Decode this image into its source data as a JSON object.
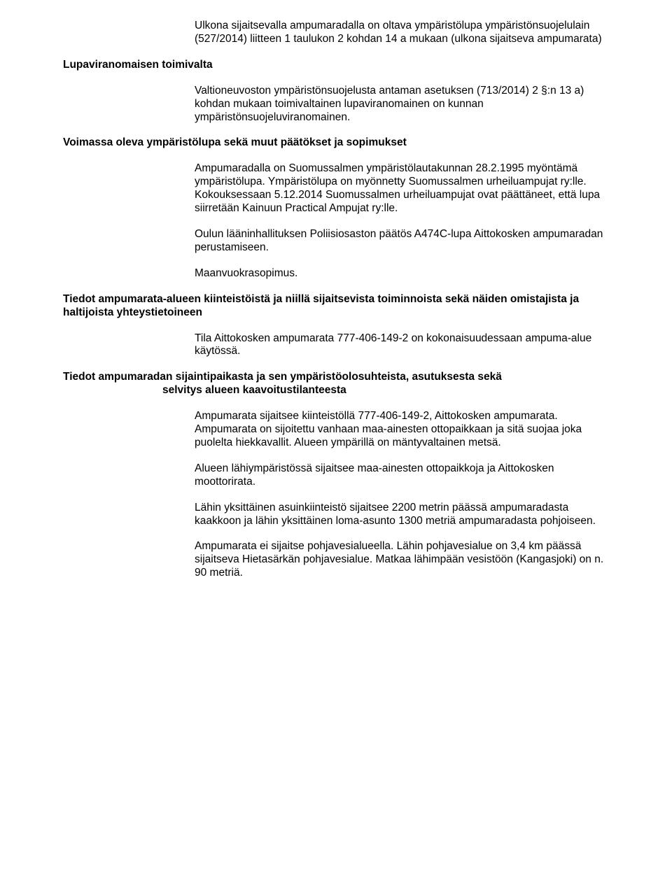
{
  "p1": "Ulkona sijaitsevalla ampumaradalla on oltava ympäristölupa ympäristönsuojelulain (527/2014) liitteen 1 taulukon 2 kohdan 14 a mukaan (ulkona sijaitseva ampumarata)",
  "h1": "Lupaviranomaisen toimivalta",
  "p2": "Valtioneuvoston ympäristönsuojelusta antaman asetuksen (713/2014) 2 §:n 13 a) kohdan mukaan toimivaltainen lupaviranomainen on kunnan ympäristönsuojeluviranomainen.",
  "h2": "Voimassa oleva ympäristölupa sekä muut päätökset ja sopimukset",
  "p3": "Ampumaradalla on Suomussalmen ympäristölautakunnan 28.2.1995 myöntämä ympäristölupa. Ympäristölupa on myönnetty Suomussalmen urheiluampujat ry:lle. Kokouksessaan 5.12.2014 Suomussalmen urheiluampujat ovat päättäneet, että lupa siirretään Kainuun Practical Ampujat ry:lle.",
  "p4": "Oulun lääninhallituksen Poliisiosaston päätös A474C-lupa Aittokosken ampumaradan perustamiseen.",
  "p5": "Maanvuokrasopimus.",
  "h3": "Tiedot ampumarata-alueen kiinteistöistä ja niillä sijaitsevista toiminnoista sekä näiden omistajista ja haltijoista yhteystietoineen",
  "p6": "Tila Aittokosken ampumarata 777-406-149-2 on kokonaisuudessaan ampuma-alue käytössä.",
  "h4a": "Tiedot ampumaradan sijaintipaikasta ja sen ympäristöolosuhteista, asutuksesta sekä",
  "h4b": "selvitys alueen kaavoitustilanteesta",
  "p7": "Ampumarata sijaitsee kiinteistöllä 777-406-149-2, Aittokosken ampumarata. Ampumarata on sijoitettu vanhaan maa-ainesten ottopaikkaan ja sitä suojaa joka puolelta hiekkavallit. Alueen ympärillä on mäntyvaltainen metsä.",
  "p8": "Alueen lähiympäristössä sijaitsee maa-ainesten ottopaikkoja ja Aittokosken moottorirata.",
  "p9": "Lähin yksittäinen asuinkiinteistö sijaitsee 2200 metrin päässä ampumaradasta kaakkoon ja lähin yksittäinen loma-asunto 1300 metriä ampumaradasta pohjoiseen.",
  "p10": "Ampumarata ei sijaitse pohjavesialueella. Lähin pohjavesialue on 3,4 km päässä sijaitseva Hietasärkän pohjavesialue. Matkaa lähimpään vesistöön (Kangasjoki) on n. 90 metriä."
}
